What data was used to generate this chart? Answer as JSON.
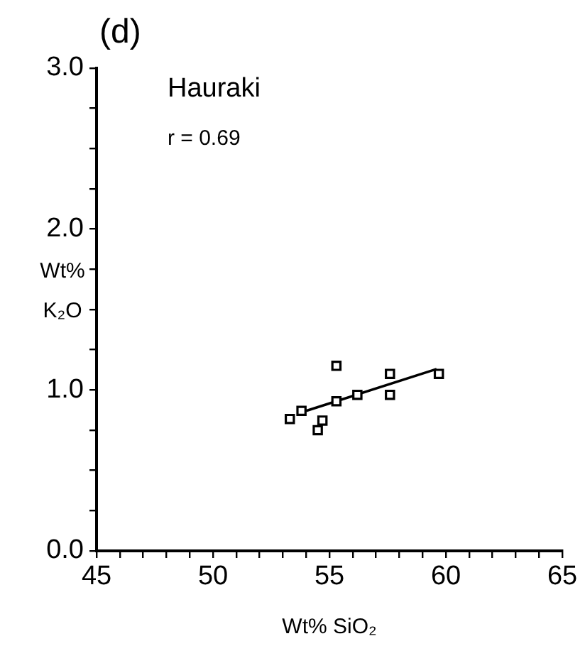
{
  "chart_data": {
    "type": "scatter",
    "title": "(d)",
    "xlabel": "Wt% SiO₂",
    "ylabel": "Wt% K₂O",
    "annotations": [
      "Hauraki",
      "r = 0.69"
    ],
    "xlim": [
      45,
      65
    ],
    "ylim": [
      0,
      3
    ],
    "xticks": [
      45,
      {
        "value": 46,
        "label": null
      },
      {
        "value": 47,
        "label": null
      },
      {
        "value": 48,
        "label": null
      },
      {
        "value": 49,
        "label": null
      },
      50,
      {
        "value": 51,
        "label": null
      },
      {
        "value": 52,
        "label": null
      },
      {
        "value": 53,
        "label": null
      },
      {
        "value": 54,
        "label": null
      },
      55,
      {
        "value": 56,
        "label": null
      },
      {
        "value": 57,
        "label": null
      },
      {
        "value": 58,
        "label": null
      },
      {
        "value": 59,
        "label": null
      },
      60,
      {
        "value": 61,
        "label": null
      },
      {
        "value": 62,
        "label": null
      },
      {
        "value": 63,
        "label": null
      },
      {
        "value": 64,
        "label": null
      },
      65
    ],
    "yticks": [
      {
        "value": 0,
        "label": "0.0"
      },
      {
        "value": 0.25,
        "label": null
      },
      {
        "value": 0.5,
        "label": null
      },
      {
        "value": 0.75,
        "label": null
      },
      {
        "value": 1,
        "label": "1.0"
      },
      {
        "value": 1.25,
        "label": null
      },
      {
        "value": 1.5,
        "label": null
      },
      {
        "value": 1.75,
        "label": null
      },
      {
        "value": 2,
        "label": "2.0"
      },
      {
        "value": 2.25,
        "label": null
      },
      {
        "value": 2.5,
        "label": null
      },
      {
        "value": 2.75,
        "label": null
      },
      {
        "value": 3,
        "label": "3.0"
      }
    ],
    "grid": false,
    "legend": false,
    "marker": "square",
    "series": [
      {
        "color": "#000000",
        "x": [
          53.3,
          53.8,
          54.5,
          54.7,
          55.3,
          55.3,
          56.2,
          57.6,
          57.6,
          59.7
        ],
        "values": [
          0.82,
          0.87,
          0.75,
          0.81,
          1.15,
          0.93,
          0.97,
          1.1,
          0.97,
          1.1
        ]
      },
      {
        "type": "line",
        "color": "#000000",
        "x": [
          54.0,
          59.6
        ],
        "values": [
          0.87,
          1.13
        ],
        "marker": "none",
        "line_style": "solid"
      }
    ]
  }
}
